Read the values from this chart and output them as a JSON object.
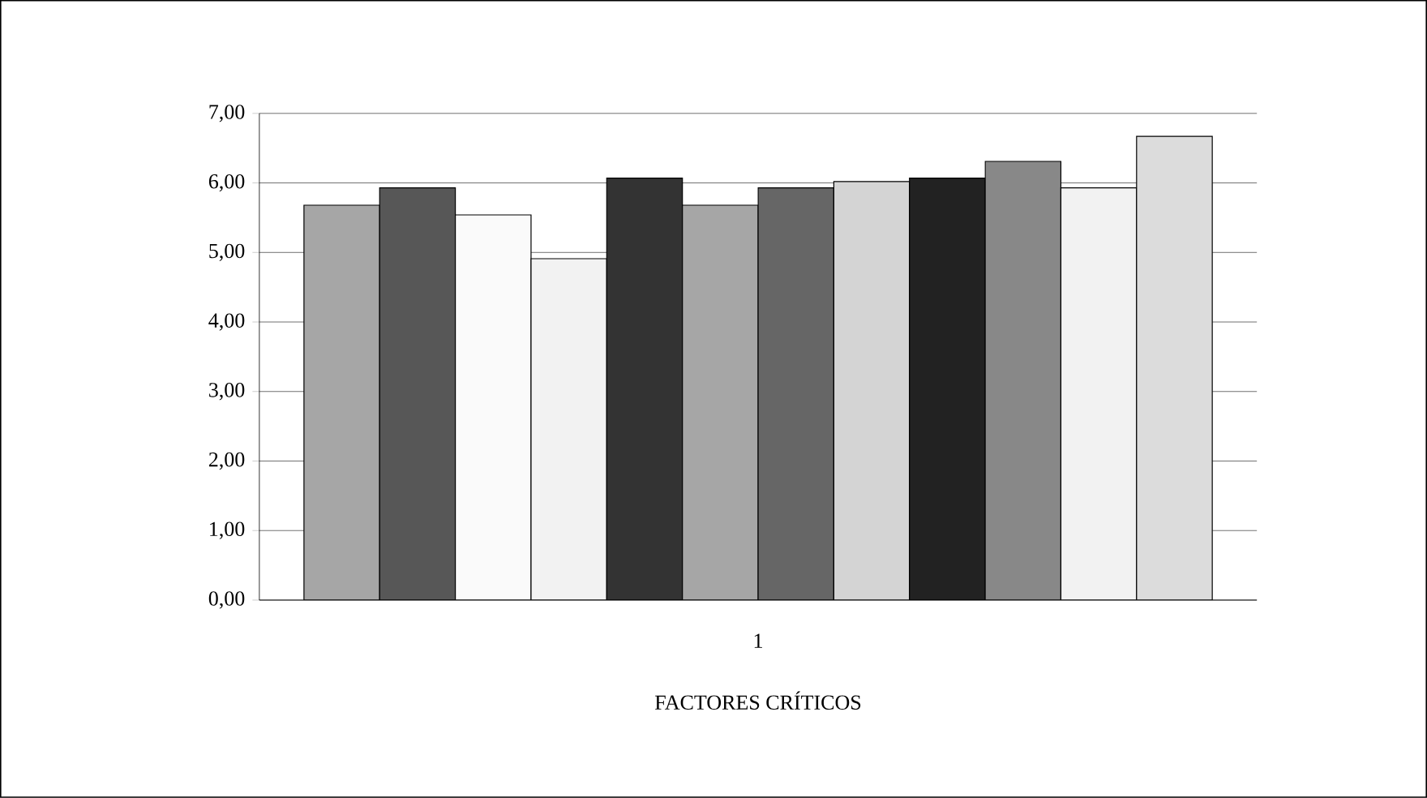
{
  "chart_data": {
    "type": "bar",
    "xlabel": "FACTORES CRÍTICOS",
    "categories": [
      "1"
    ],
    "series": [
      {
        "color": "#a6a6a6",
        "values": [
          5.68
        ]
      },
      {
        "color": "#575757",
        "values": [
          5.93
        ]
      },
      {
        "color": "#fafafa",
        "values": [
          5.54
        ]
      },
      {
        "color": "#f2f2f2",
        "values": [
          4.91
        ]
      },
      {
        "color": "#333333",
        "values": [
          6.07
        ]
      },
      {
        "color": "#a6a6a6",
        "values": [
          5.68
        ]
      },
      {
        "color": "#666666",
        "values": [
          5.93
        ]
      },
      {
        "color": "#d4d4d4",
        "values": [
          6.02
        ]
      },
      {
        "color": "#222222",
        "values": [
          6.07
        ]
      },
      {
        "color": "#888888",
        "values": [
          6.31
        ]
      },
      {
        "color": "#f2f2f2",
        "values": [
          5.93
        ]
      },
      {
        "color": "#dcdcdc",
        "values": [
          6.67
        ]
      }
    ],
    "ylim": [
      0,
      7
    ],
    "yticks": [
      {
        "value": 0,
        "label": "0,00"
      },
      {
        "value": 1,
        "label": "1,00"
      },
      {
        "value": 2,
        "label": "2,00"
      },
      {
        "value": 3,
        "label": "3,00"
      },
      {
        "value": 4,
        "label": "4,00"
      },
      {
        "value": 5,
        "label": "5,00"
      },
      {
        "value": 6,
        "label": "6,00"
      },
      {
        "value": 7,
        "label": "7,00"
      }
    ],
    "grid": "y"
  }
}
